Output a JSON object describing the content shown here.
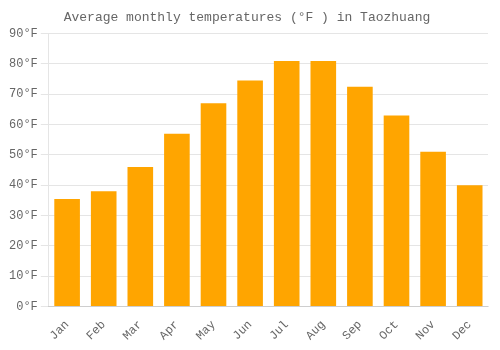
{
  "chart_data": {
    "type": "bar",
    "title": "Average monthly temperatures (°F ) in Taozhuang",
    "categories": [
      "Jan",
      "Feb",
      "Mar",
      "Apr",
      "May",
      "Jun",
      "Jul",
      "Aug",
      "Sep",
      "Oct",
      "Nov",
      "Dec"
    ],
    "values": [
      35.5,
      38,
      46,
      57,
      67,
      74.5,
      81,
      81,
      72.5,
      63,
      51,
      40
    ],
    "color": "#FFA500",
    "ylim": [
      0,
      90
    ],
    "yticks": [
      {
        "value": 0,
        "label": "0°F"
      },
      {
        "value": 10,
        "label": "10°F"
      },
      {
        "value": 20,
        "label": "20°F"
      },
      {
        "value": 30,
        "label": "30°F"
      },
      {
        "value": 40,
        "label": "40°F"
      },
      {
        "value": 50,
        "label": "50°F"
      },
      {
        "value": 60,
        "label": "60°F"
      },
      {
        "value": 70,
        "label": "70°F"
      },
      {
        "value": 80,
        "label": "80°F"
      },
      {
        "value": 90,
        "label": "90°F"
      }
    ],
    "grid": true
  }
}
